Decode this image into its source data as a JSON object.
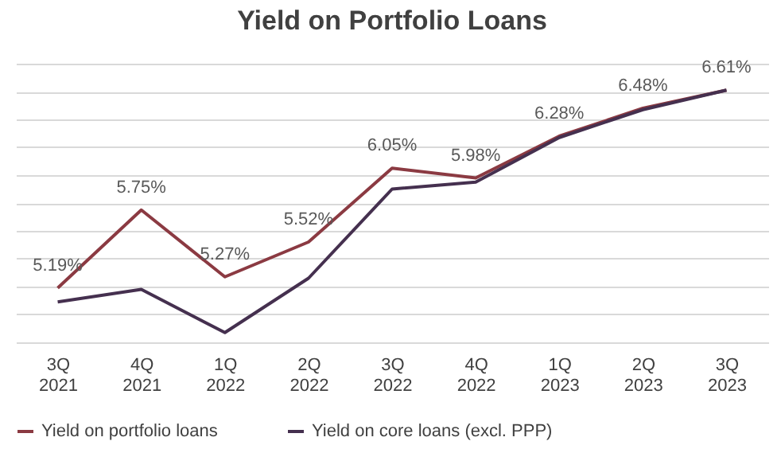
{
  "chart_data": {
    "type": "line",
    "title": "Yield on Portfolio Loans",
    "categories": [
      "3Q 2021",
      "4Q 2021",
      "1Q 2022",
      "2Q 2022",
      "3Q 2022",
      "4Q 2022",
      "1Q 2023",
      "2Q 2023",
      "3Q 2023"
    ],
    "series": [
      {
        "name": "Yield on portfolio loans",
        "color": "#8b3a42",
        "values": [
          5.19,
          5.75,
          5.27,
          5.52,
          6.05,
          5.98,
          6.28,
          6.48,
          6.61
        ],
        "value_labels": [
          "5.19%",
          "5.75%",
          "5.27%",
          "5.52%",
          "6.05%",
          "5.98%",
          "6.28%",
          "6.48%",
          "6.61%"
        ]
      },
      {
        "name": "Yield on core loans (excl. PPP)",
        "color": "#45304f",
        "values": [
          5.09,
          5.18,
          4.87,
          5.26,
          5.9,
          5.95,
          6.27,
          6.47,
          6.61
        ]
      }
    ],
    "tick_labels": "x",
    "grid": "y",
    "legend": "bottom",
    "marker": "none",
    "line_style": "solid"
  }
}
